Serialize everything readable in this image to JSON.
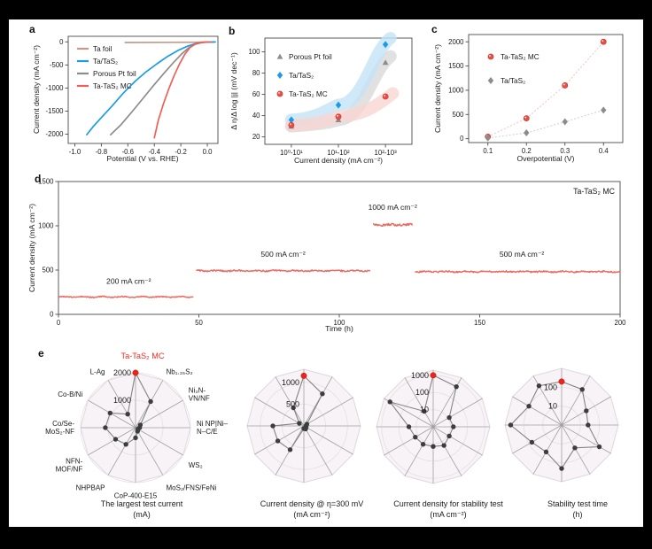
{
  "panels": {
    "a": "a",
    "b": "b",
    "c": "c",
    "d": "d",
    "e": "e"
  },
  "colors": {
    "ta_foil": "#c79a87",
    "ta_tas2": "#1b9be6",
    "pt_foil": "#8c8c8c",
    "mc_red": "#ee5f55",
    "band_blue": "#c3e4f8",
    "band_gray": "#d9d9d9",
    "band_pink": "#f8d6d3",
    "radar_fill": "#f8f3f7",
    "radar_edge": "#e0d7dd",
    "spoke": "#a0a0a0",
    "ring": "#e6dee4",
    "dot": "#3d3d3d",
    "highlight_red": "#ee241c",
    "axis": "#4a4a4a",
    "text": "#1a1a1a"
  },
  "chart_data": [
    {
      "panel": "a",
      "type": "lsv_line",
      "xlabel": "Potential (V vs. RHE)",
      "ylabel": "Current density (mA cm⁻²)",
      "xlim": [
        -1.05,
        0.08
      ],
      "ylim": [
        -2200,
        120
      ],
      "xticks": [
        {
          "v": -1.0,
          "l": "-1.0"
        },
        {
          "v": -0.8,
          "l": "-0.8"
        },
        {
          "v": -0.6,
          "l": "-0.6"
        },
        {
          "v": -0.4,
          "l": "-0.4"
        },
        {
          "v": -0.2,
          "l": "-0.2"
        },
        {
          "v": 0.0,
          "l": "0.0"
        }
      ],
      "yticks": [
        {
          "v": 0,
          "l": "0"
        },
        {
          "v": -500,
          "l": "-500"
        },
        {
          "v": -1000,
          "l": "-1000"
        },
        {
          "v": -1500,
          "l": "-1500"
        },
        {
          "v": -2000,
          "l": "-2000"
        }
      ],
      "series": [
        {
          "name": "Ta foil",
          "color": "#c79a87",
          "points": [
            [
              -0.62,
              -14
            ],
            [
              -0.3,
              -10
            ],
            [
              0.05,
              -6
            ]
          ]
        },
        {
          "name": "Ta/TaS₂",
          "color": "#1b9be6",
          "points": [
            [
              0.06,
              -2
            ],
            [
              -0.02,
              -8
            ],
            [
              -0.08,
              -30
            ],
            [
              -0.15,
              -95
            ],
            [
              -0.22,
              -185
            ],
            [
              -0.3,
              -315
            ],
            [
              -0.38,
              -475
            ],
            [
              -0.46,
              -645
            ],
            [
              -0.54,
              -840
            ],
            [
              -0.6,
              -1010
            ],
            [
              -0.64,
              -1130
            ],
            [
              -0.72,
              -1390
            ],
            [
              -0.8,
              -1640
            ],
            [
              -0.86,
              -1830
            ],
            [
              -0.91,
              -2010
            ]
          ]
        },
        {
          "name": "Porous Pt foil",
          "color": "#8c8c8c",
          "points": [
            [
              0.03,
              -2
            ],
            [
              -0.04,
              -12
            ],
            [
              -0.09,
              -50
            ],
            [
              -0.14,
              -130
            ],
            [
              -0.19,
              -250
            ],
            [
              -0.26,
              -460
            ],
            [
              -0.33,
              -690
            ],
            [
              -0.41,
              -960
            ],
            [
              -0.49,
              -1240
            ],
            [
              -0.57,
              -1520
            ],
            [
              -0.65,
              -1790
            ],
            [
              -0.73,
              -2010
            ]
          ]
        },
        {
          "name": "Ta-TaS₂ MC",
          "color": "#ee5f55",
          "points": [
            [
              0.02,
              -2
            ],
            [
              -0.05,
              -12
            ],
            [
              -0.09,
              -45
            ],
            [
              -0.13,
              -120
            ],
            [
              -0.17,
              -270
            ],
            [
              -0.21,
              -480
            ],
            [
              -0.25,
              -730
            ],
            [
              -0.29,
              -1010
            ],
            [
              -0.33,
              -1330
            ],
            [
              -0.37,
              -1700
            ],
            [
              -0.4,
              -2080
            ]
          ]
        }
      ],
      "legend": [
        "Ta foil",
        "Ta/TaS₂",
        "Porous Pt foil",
        "Ta-TaS₂ MC"
      ]
    },
    {
      "panel": "b",
      "type": "tafel_scatter",
      "xlabel": "Current density (mA cm⁻²)",
      "ylabel": "Δ η/Δ log |j| (mV dec⁻¹)",
      "categories": [
        "10⁰-10¹",
        "10¹-10²",
        "10²-10³"
      ],
      "ylim": [
        13,
        113
      ],
      "yticks": [
        {
          "v": 20,
          "l": "20"
        },
        {
          "v": 40,
          "l": "40"
        },
        {
          "v": 60,
          "l": "60"
        },
        {
          "v": 80,
          "l": "80"
        },
        {
          "v": 100,
          "l": "100"
        }
      ],
      "series": [
        {
          "name": "Porous Pt foil",
          "marker": "triangle",
          "color": "#8c8c8c",
          "band": "#d9d9d9",
          "values": [
            30,
            36,
            90
          ]
        },
        {
          "name": "Ta/TaS₂",
          "marker": "diamond",
          "color": "#1b9be6",
          "band": "#c3e4f8",
          "values": [
            36,
            50,
            107
          ]
        },
        {
          "name": "Ta-TaS₂ MC",
          "marker": "sphere",
          "color": "#ea4f46",
          "band": "#f8d6d3",
          "values": [
            31,
            39,
            58
          ]
        }
      ]
    },
    {
      "panel": "c",
      "type": "xy_scatter",
      "xlabel": "Overpotential (V)",
      "ylabel": "Current density (mA cm⁻²)",
      "xlim": [
        0.05,
        0.45
      ],
      "ylim": [
        -80,
        2150
      ],
      "xticks": [
        {
          "v": 0.1,
          "l": "0.1"
        },
        {
          "v": 0.2,
          "l": "0.2"
        },
        {
          "v": 0.3,
          "l": "0.3"
        },
        {
          "v": 0.4,
          "l": "0.4"
        }
      ],
      "yticks": [
        {
          "v": 0,
          "l": "0"
        },
        {
          "v": 500,
          "l": "500"
        },
        {
          "v": 1000,
          "l": "1000"
        },
        {
          "v": 1500,
          "l": "1500"
        },
        {
          "v": 2000,
          "l": "2000"
        }
      ],
      "series": [
        {
          "name": "Ta-TaS₂ MC",
          "marker": "sphere",
          "color": "#ea4f46",
          "line": "#f3c3c0",
          "points": [
            [
              0.1,
              40
            ],
            [
              0.2,
              420
            ],
            [
              0.3,
              1100
            ],
            [
              0.4,
              2000
            ]
          ]
        },
        {
          "name": "Ta/TaS₂",
          "marker": "diamond",
          "color": "#8c8c8c",
          "line": "#d0d0d0",
          "points": [
            [
              0.1,
              15
            ],
            [
              0.2,
              120
            ],
            [
              0.3,
              350
            ],
            [
              0.4,
              590
            ]
          ]
        }
      ]
    },
    {
      "panel": "d",
      "type": "stability",
      "xlabel": "Time (h)",
      "ylabel": "Current density (mA cm⁻²)",
      "annotation": "Ta-TaS₂ MC",
      "xlim": [
        0,
        200
      ],
      "ylim": [
        0,
        1500
      ],
      "xticks": [
        {
          "v": 0,
          "l": "0"
        },
        {
          "v": 50,
          "l": "50"
        },
        {
          "v": 100,
          "l": "100"
        },
        {
          "v": 150,
          "l": "150"
        },
        {
          "v": 200,
          "l": "200"
        }
      ],
      "yticks": [
        {
          "v": 0,
          "l": "0"
        },
        {
          "v": 500,
          "l": "500"
        },
        {
          "v": 1000,
          "l": "1000"
        },
        {
          "v": 1500,
          "l": "1500"
        }
      ],
      "line_color": "#ed6a5f",
      "segments": [
        {
          "start": 0,
          "end": 48,
          "value": 197,
          "label": "200 mA cm⁻²",
          "label_pos": [
            25,
            345
          ]
        },
        {
          "start": 49,
          "end": 111,
          "value": 492,
          "label": "500 mA cm⁻²",
          "label_pos": [
            80,
            650
          ]
        },
        {
          "start": 112,
          "end": 126,
          "value": 1012,
          "label": "1000 mA cm⁻²",
          "label_pos": [
            119,
            1180
          ]
        },
        {
          "start": 127,
          "end": 200,
          "value": 482,
          "label": "500 mA cm⁻²",
          "label_pos": [
            165,
            650
          ]
        }
      ]
    },
    {
      "panel": "e1",
      "type": "radar",
      "caption1": "The largest test current",
      "caption2": "(mA)",
      "scale": "linear",
      "max": 2000,
      "ticks": [
        {
          "v": 1000,
          "l": "1000"
        },
        {
          "v": 2000,
          "l": "2000"
        }
      ],
      "show_axis_labels": true,
      "axes": [
        "Ta-TaS₂ MC",
        "Nb₁.₃₅S₂",
        "Ni₃N-\nVN/NF",
        "Ni NP|Ni–\nN–C/E",
        "WS₂",
        "MoS₂/FNS/FeNi",
        "CoP-400-E15",
        "NHPBAP",
        "NFN-\nMOF/NF",
        "Co/Se-\nMoS₂-NF",
        "Co-B/Ni",
        "L-Ag"
      ],
      "values": [
        2000,
        1100,
        200,
        150,
        100,
        150,
        370,
        700,
        840,
        1100,
        1070,
        570
      ],
      "highlight_index": 0
    },
    {
      "panel": "e2",
      "type": "radar",
      "caption1": "Current density @ η=300 mV",
      "caption2": "(mA cm⁻²)",
      "scale": "linear",
      "max": 1300,
      "ticks": [
        {
          "v": 500,
          "l": "500"
        },
        {
          "v": 1000,
          "l": "1000"
        }
      ],
      "show_axis_labels": false,
      "values": [
        1150,
        850,
        80,
        50,
        60,
        80,
        60,
        630,
        690,
        710,
        120,
        480
      ],
      "highlight_index": 0
    },
    {
      "panel": "e3",
      "type": "radar",
      "caption1": "Current density for stability test",
      "caption2": "(mA cm⁻²)",
      "scale": "log",
      "max": 2000,
      "ticks": [
        {
          "v": 10,
          "l": "10"
        },
        {
          "v": 100,
          "l": "100"
        },
        {
          "v": 1000,
          "l": "1000"
        }
      ],
      "show_axis_labels": false,
      "values": [
        1000,
        500,
        12,
        15,
        12,
        18,
        14,
        15,
        16,
        26,
        800,
        11
      ],
      "highlight_index": 0
    },
    {
      "panel": "e4",
      "type": "radar",
      "caption1": "Stability test time",
      "caption2": "(h)",
      "scale": "log",
      "max": 1000,
      "ticks": [
        {
          "v": 10,
          "l": "10"
        },
        {
          "v": 100,
          "l": "100"
        }
      ],
      "show_axis_labels": false,
      "values": [
        200,
        150,
        32,
        25,
        200,
        25,
        200,
        44,
        66,
        500,
        100,
        250
      ],
      "highlight_index": 0
    }
  ]
}
